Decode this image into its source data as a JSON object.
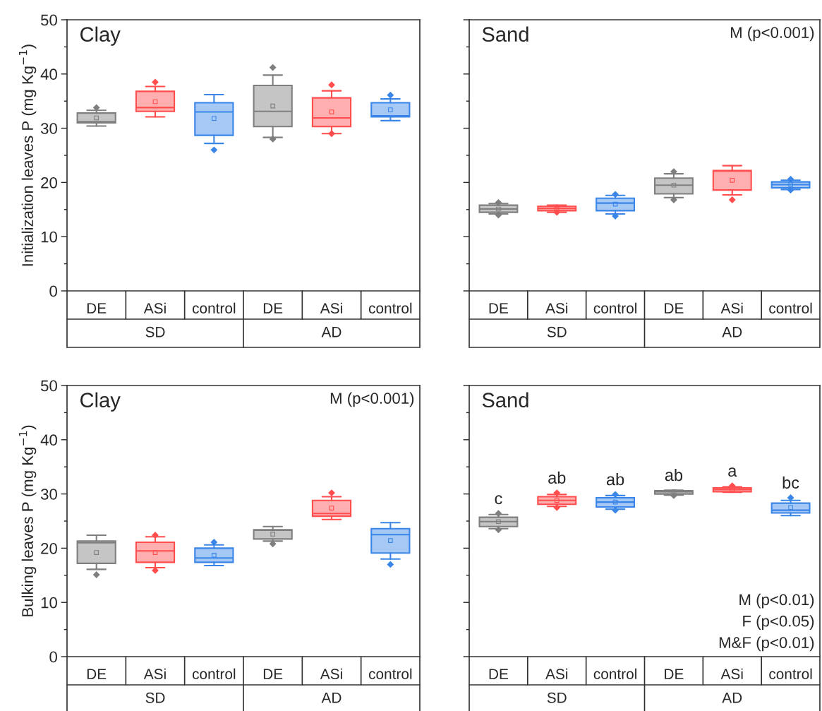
{
  "chart_data": [
    {
      "type": "box",
      "title": "Clay",
      "ylabel": "Initialization leaves P (mg Kg$^{−1}$)",
      "categories": [
        "DE",
        "ASi",
        "control",
        "DE",
        "ASi",
        "control"
      ],
      "colors": [
        "#7f7f7f",
        "#ff4d4d",
        "#3a86e8",
        "#7f7f7f",
        "#ff4d4d",
        "#3a86e8"
      ],
      "ylim": [
        0,
        50
      ],
      "yticks": [
        0,
        10,
        20,
        30,
        40,
        50
      ],
      "annotations": [
        "SD",
        "AD"
      ],
      "boxes": [
        {
          "low": 30.4,
          "q1": 31.0,
          "median": 31.2,
          "q3": 32.8,
          "high": 33.3,
          "mean": 31.9,
          "outliers": [
            33.8
          ]
        },
        {
          "low": 32.1,
          "q1": 33.1,
          "median": 33.8,
          "q3": 36.8,
          "high": 37.7,
          "mean": 34.9,
          "outliers": [
            38.5
          ]
        },
        {
          "low": 27.2,
          "q1": 28.7,
          "median": 33.0,
          "q3": 34.7,
          "high": 36.2,
          "mean": 31.8,
          "outliers": [
            26.0
          ]
        },
        {
          "low": 28.3,
          "q1": 30.3,
          "median": 33.1,
          "q3": 37.9,
          "high": 39.8,
          "mean": 34.1,
          "outliers": [
            41.2,
            28.0
          ]
        },
        {
          "low": 29.0,
          "q1": 30.3,
          "median": 31.9,
          "q3": 35.6,
          "high": 36.9,
          "mean": 33.0,
          "outliers": [
            38.0,
            29.0
          ]
        },
        {
          "low": 31.4,
          "q1": 32.1,
          "median": 32.3,
          "q3": 34.7,
          "high": 35.4,
          "mean": 33.4,
          "outliers": [
            36.1
          ]
        }
      ]
    },
    {
      "type": "box",
      "title": "Sand",
      "subtitle": "M (p<0.001)",
      "categories": [
        "DE",
        "ASi",
        "control",
        "DE",
        "ASi",
        "control"
      ],
      "colors": [
        "#7f7f7f",
        "#ff4d4d",
        "#3a86e8",
        "#7f7f7f",
        "#ff4d4d",
        "#3a86e8"
      ],
      "ylim": [
        0,
        50
      ],
      "yticks": [
        0,
        10,
        20,
        30,
        40,
        50
      ],
      "tick_labels": "x",
      "annotations": [
        "SD",
        "AD"
      ],
      "boxes": [
        {
          "low": 14.2,
          "q1": 14.5,
          "median": 15.1,
          "q3": 15.8,
          "high": 16.1,
          "mean": 15.1,
          "outliers": [
            16.3,
            14.0
          ]
        },
        {
          "low": 14.5,
          "q1": 14.8,
          "median": 15.2,
          "q3": 15.6,
          "high": 15.8,
          "mean": 15.1,
          "outliers": [
            14.5
          ]
        },
        {
          "low": 14.2,
          "q1": 14.8,
          "median": 16.2,
          "q3": 17.1,
          "high": 17.6,
          "mean": 16.0,
          "outliers": [
            17.8,
            13.8
          ]
        },
        {
          "low": 17.2,
          "q1": 17.9,
          "median": 19.5,
          "q3": 20.8,
          "high": 21.6,
          "mean": 19.5,
          "outliers": [
            22.0,
            16.8
          ]
        },
        {
          "low": 17.7,
          "q1": 18.6,
          "median": 22.1,
          "q3": 22.2,
          "high": 23.1,
          "mean": 20.4,
          "outliers": [
            16.8
          ]
        },
        {
          "low": 18.7,
          "q1": 19.0,
          "median": 19.6,
          "q3": 20.1,
          "high": 20.4,
          "mean": 19.6,
          "outliers": [
            20.6,
            18.6
          ]
        }
      ]
    },
    {
      "type": "box",
      "title": "Clay",
      "subtitle": "M (p<0.001)",
      "ylabel": "Bulking leaves P (mg Kg$^{−1}$)",
      "categories": [
        "DE",
        "ASi",
        "control",
        "DE",
        "ASi",
        "control"
      ],
      "colors": [
        "#7f7f7f",
        "#ff4d4d",
        "#3a86e8",
        "#7f7f7f",
        "#ff4d4d",
        "#3a86e8"
      ],
      "ylim": [
        0,
        50
      ],
      "yticks": [
        0,
        10,
        20,
        30,
        40,
        50
      ],
      "annotations": [
        "SD",
        "AD"
      ],
      "boxes": [
        {
          "low": 16.1,
          "q1": 17.2,
          "median": 21.0,
          "q3": 21.3,
          "high": 22.4,
          "mean": 19.2,
          "outliers": [
            15.1
          ]
        },
        {
          "low": 16.4,
          "q1": 17.4,
          "median": 19.5,
          "q3": 21.1,
          "high": 22.1,
          "mean": 19.2,
          "outliers": [
            22.4,
            15.9
          ]
        },
        {
          "low": 16.8,
          "q1": 17.4,
          "median": 18.2,
          "q3": 20.0,
          "high": 20.6,
          "mean": 18.7,
          "outliers": [
            21.1
          ]
        },
        {
          "low": 21.3,
          "q1": 21.7,
          "median": 23.3,
          "q3": 23.4,
          "high": 24.0,
          "mean": 22.6,
          "outliers": [
            20.8
          ]
        },
        {
          "low": 25.3,
          "q1": 25.9,
          "median": 26.4,
          "q3": 28.8,
          "high": 29.5,
          "mean": 27.4,
          "outliers": [
            30.2
          ]
        },
        {
          "low": 18.0,
          "q1": 19.1,
          "median": 22.5,
          "q3": 23.6,
          "high": 24.7,
          "mean": 21.4,
          "outliers": [
            17.0
          ]
        }
      ]
    },
    {
      "type": "box",
      "title": "Sand",
      "subtitle": "M (p<0.01)\nF (p<0.05)\nM&F (p<0.01)",
      "categories": [
        "DE",
        "ASi",
        "control",
        "DE",
        "ASi",
        "control"
      ],
      "colors": [
        "#7f7f7f",
        "#ff4d4d",
        "#3a86e8",
        "#7f7f7f",
        "#ff4d4d",
        "#3a86e8"
      ],
      "ylim": [
        0,
        50
      ],
      "yticks": [
        0,
        10,
        20,
        30,
        40,
        50
      ],
      "tick_labels": "x",
      "annotations": [
        "SD",
        "AD"
      ],
      "value_labels": [
        "c",
        "ab",
        "ab",
        "ab",
        "a",
        "bc"
      ],
      "boxes": [
        {
          "low": 23.6,
          "q1": 24.0,
          "median": 24.9,
          "q3": 25.7,
          "high": 26.2,
          "mean": 24.9,
          "outliers": [
            26.4,
            23.4
          ]
        },
        {
          "low": 27.7,
          "q1": 28.1,
          "median": 28.8,
          "q3": 29.5,
          "high": 29.9,
          "mean": 28.8,
          "outliers": [
            30.2,
            27.5
          ]
        },
        {
          "low": 27.2,
          "q1": 27.6,
          "median": 28.5,
          "q3": 29.3,
          "high": 29.7,
          "mean": 28.5,
          "outliers": [
            29.9,
            27.0
          ]
        },
        {
          "low": 29.8,
          "q1": 30.0,
          "median": 30.4,
          "q3": 30.6,
          "high": 30.7,
          "mean": 30.4,
          "outliers": [
            29.7
          ]
        },
        {
          "low": 30.3,
          "q1": 30.4,
          "median": 30.8,
          "q3": 31.1,
          "high": 31.3,
          "mean": 30.8,
          "outliers": [
            31.5
          ]
        },
        {
          "low": 26.0,
          "q1": 26.5,
          "median": 27.0,
          "q3": 28.3,
          "high": 28.8,
          "mean": 27.5,
          "outliers": [
            29.3
          ]
        }
      ]
    }
  ]
}
